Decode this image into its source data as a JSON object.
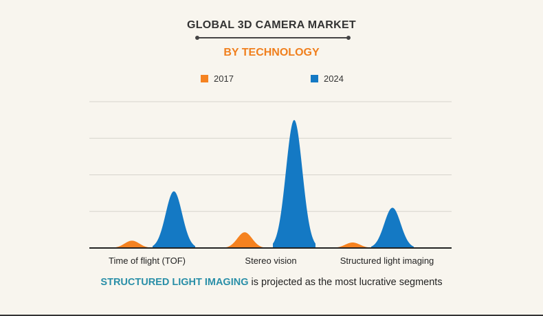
{
  "title": "GLOBAL 3D CAMERA MARKET",
  "subtitle": "BY TECHNOLOGY",
  "footer": {
    "highlight": "STRUCTURED LIGHT IMAGING",
    "text": " is projected as the most lucrative segments"
  },
  "colors": {
    "2017": "#f58220",
    "2024": "#1479c4",
    "subtitle": "#f07f1d",
    "highlight": "#2a8fa8"
  },
  "chart_data": {
    "type": "area",
    "title": "GLOBAL 3D CAMERA MARKET",
    "subtitle": "BY TECHNOLOGY",
    "categories": [
      "Time of flight (TOF)",
      "Stereo vision",
      "Structured light imaging"
    ],
    "series": [
      {
        "name": "2017",
        "values": [
          0.2,
          0.43,
          0.15
        ]
      },
      {
        "name": "2024",
        "values": [
          1.55,
          3.5,
          1.1
        ]
      }
    ],
    "ylim": [
      0,
      4
    ],
    "y_tick_labels": "none",
    "grid": true,
    "legend": "top-center"
  }
}
